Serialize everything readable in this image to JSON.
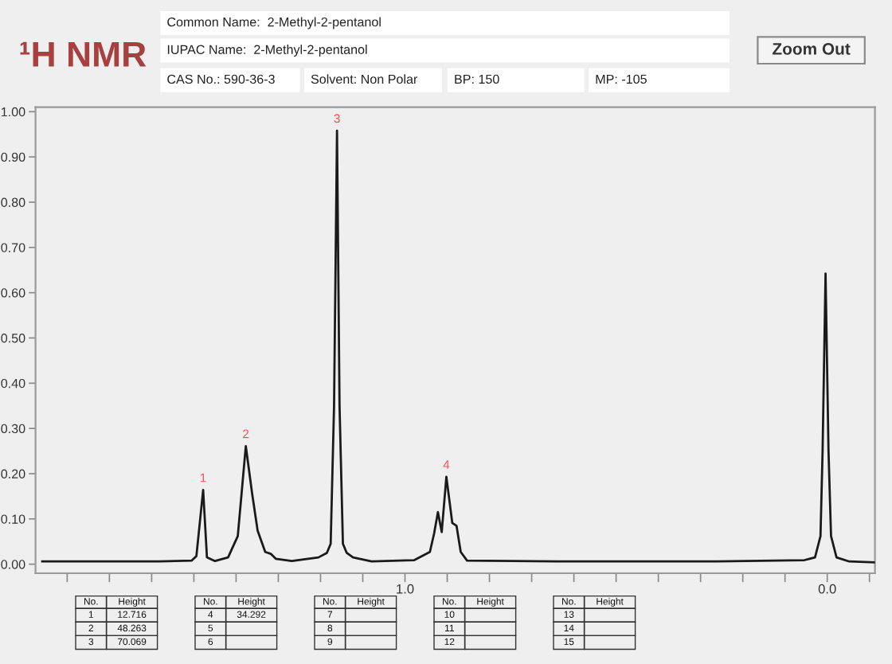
{
  "chart_data": {
    "type": "line",
    "title": "¹H NMR",
    "x": [
      1.859,
      1.582,
      1.505,
      1.494,
      1.478,
      1.469,
      1.45,
      1.419,
      1.396,
      1.377,
      1.362,
      1.349,
      1.331,
      1.318,
      1.306,
      1.268,
      1.205,
      1.185,
      1.176,
      1.168,
      1.161,
      1.155,
      1.147,
      1.138,
      1.123,
      1.079,
      0.978,
      0.941,
      0.931,
      0.922,
      0.913,
      0.902,
      0.888,
      0.878,
      0.868,
      0.853,
      0.639,
      0.262,
      0.054,
      0.029,
      0.016,
      0.011,
      0.004,
      -0.003,
      -0.009,
      -0.022,
      -0.052,
      -0.112
    ],
    "values": [
      0.006,
      0.006,
      0.008,
      0.018,
      0.164,
      0.015,
      0.007,
      0.015,
      0.062,
      0.261,
      0.156,
      0.074,
      0.027,
      0.023,
      0.012,
      0.007,
      0.015,
      0.025,
      0.045,
      0.35,
      0.958,
      0.35,
      0.045,
      0.025,
      0.015,
      0.006,
      0.009,
      0.027,
      0.068,
      0.115,
      0.071,
      0.193,
      0.091,
      0.085,
      0.027,
      0.008,
      0.006,
      0.006,
      0.009,
      0.015,
      0.062,
      0.25,
      0.642,
      0.25,
      0.062,
      0.015,
      0.006,
      0.004
    ],
    "color": "#1a1a1a",
    "xlim": [
      1.875,
      -0.113
    ],
    "xticks": [
      {
        "value": 1.8,
        "label": null
      },
      {
        "value": 1.7,
        "label": null
      },
      {
        "value": 1.6,
        "label": null
      },
      {
        "value": 1.5,
        "label": null
      },
      {
        "value": 1.4,
        "label": null
      },
      {
        "value": 1.3,
        "label": null
      },
      {
        "value": 1.2,
        "label": null
      },
      {
        "value": 1.1,
        "label": null
      },
      {
        "value": 1.0,
        "label": "1.0"
      },
      {
        "value": 0.9,
        "label": null
      },
      {
        "value": 0.8,
        "label": null
      },
      {
        "value": 0.7,
        "label": null
      },
      {
        "value": 0.6,
        "label": null
      },
      {
        "value": 0.5,
        "label": null
      },
      {
        "value": 0.4,
        "label": null
      },
      {
        "value": 0.3,
        "label": null
      },
      {
        "value": 0.2,
        "label": null
      },
      {
        "value": 0.1,
        "label": null
      },
      {
        "value": 0.0,
        "label": "0.0"
      },
      {
        "value": -0.1,
        "label": null
      }
    ],
    "ylim": [
      -0.02,
      1.01
    ],
    "yticks": [
      {
        "value": 0.0,
        "label": "0.00"
      },
      {
        "value": 0.1,
        "label": "0.10"
      },
      {
        "value": 0.2,
        "label": "0.20"
      },
      {
        "value": 0.3,
        "label": "0.30"
      },
      {
        "value": 0.4,
        "label": "0.40"
      },
      {
        "value": 0.5,
        "label": "0.50"
      },
      {
        "value": 0.6,
        "label": "0.60"
      },
      {
        "value": 0.7,
        "label": "0.70"
      },
      {
        "value": 0.8,
        "label": "0.80"
      },
      {
        "value": 0.9,
        "label": "0.90"
      },
      {
        "value": 1.0,
        "label": "1.00"
      }
    ],
    "annotations": [
      "Common Name:  2-Methyl-2-pentanol",
      "IUPAC Name:  2-Methyl-2-pentanol",
      "CAS No.: 590-36-3",
      "Solvent: Non Polar",
      "BP: 150",
      "MP: -105",
      "Zoom Out",
      "No.",
      "Height",
      "1",
      "12.716",
      "2",
      "48.263",
      "3",
      "70.069",
      "No.",
      "Height",
      "4",
      "34.292",
      "5",
      "6",
      "No.",
      "Height",
      "7",
      "8",
      "9",
      "No.",
      "Height",
      "10",
      "11",
      "12",
      "No.",
      "Height",
      "13",
      "14",
      "15",
      {
        "text": "1",
        "x": 1.478,
        "y": 0.164
      },
      {
        "text": "2",
        "x": 1.377,
        "y": 0.261
      },
      {
        "text": "3",
        "x": 1.161,
        "y": 0.958
      },
      {
        "text": "4",
        "x": 0.902,
        "y": 0.193
      }
    ]
  }
}
